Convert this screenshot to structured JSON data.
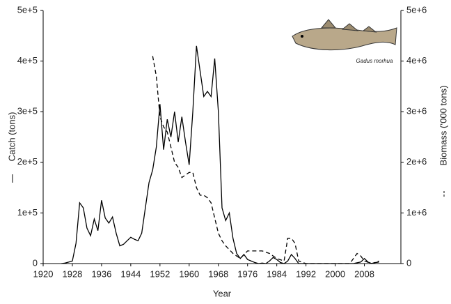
{
  "chart_data": {
    "type": "line",
    "x_label": "Year",
    "y_label": "Catch (tons)",
    "y2_label": "Biomass (‘000 tons)",
    "image_caption": "Gadus morhua",
    "xlim": [
      1920,
      2018
    ],
    "xticks": [
      1920,
      1928,
      1936,
      1944,
      1952,
      1960,
      1968,
      1976,
      1984,
      1992,
      2000,
      2008
    ],
    "ylim": [
      0,
      500000
    ],
    "yticks": [
      0,
      {
        "value": 100000,
        "label": "1e+5"
      },
      {
        "value": 200000,
        "label": "2e+5"
      },
      {
        "value": 300000,
        "label": "3e+5"
      },
      {
        "value": 400000,
        "label": "4e+5"
      },
      {
        "value": 500000,
        "label": "5e+5"
      }
    ],
    "y2lim": [
      0,
      5000000
    ],
    "y2ticks": [
      0,
      {
        "value": 1000000,
        "label": "1e+6"
      },
      {
        "value": 2000000,
        "label": "2e+6"
      },
      {
        "value": 3000000,
        "label": "3e+6"
      },
      {
        "value": 4000000,
        "label": "4e+6"
      },
      {
        "value": 5000000,
        "label": "5e+6"
      }
    ],
    "series": [
      {
        "name": "Catch (tons)",
        "color": "#000000",
        "dash": "solid",
        "x": [
          1925,
          1926,
          1927,
          1928,
          1929,
          1930,
          1931,
          1932,
          1933,
          1934,
          1935,
          1936,
          1937,
          1938,
          1939,
          1940,
          1941,
          1942,
          1943,
          1944,
          1945,
          1946,
          1947,
          1948,
          1949,
          1950,
          1951,
          1952,
          1953,
          1954,
          1955,
          1956,
          1957,
          1958,
          1959,
          1960,
          1961,
          1962,
          1963,
          1964,
          1965,
          1966,
          1967,
          1968,
          1969,
          1970,
          1971,
          1972,
          1973,
          1974,
          1975,
          1976,
          1977,
          1978,
          1979,
          1980,
          1981,
          1982,
          1983,
          1984,
          1985,
          1986,
          1987,
          1988,
          1989,
          1990,
          2005,
          2007,
          2008,
          2009,
          2010,
          2011,
          2012
        ],
        "values": [
          0,
          1000,
          3000,
          5000,
          40000,
          120000,
          110000,
          70000,
          55000,
          88000,
          65000,
          125000,
          90000,
          80000,
          92000,
          60000,
          35000,
          38000,
          45000,
          52000,
          48000,
          45000,
          60000,
          110000,
          160000,
          185000,
          230000,
          315000,
          225000,
          285000,
          250000,
          300000,
          240000,
          290000,
          240000,
          195000,
          300000,
          430000,
          380000,
          330000,
          340000,
          330000,
          405000,
          300000,
          110000,
          85000,
          100000,
          50000,
          20000,
          10000,
          18000,
          8000,
          5000,
          2000,
          0,
          1000,
          0,
          5000,
          12000,
          8000,
          2000,
          0,
          5000,
          18000,
          10000,
          0,
          0,
          3000,
          10000,
          3000,
          0,
          2000,
          3000
        ]
      },
      {
        "name": "Biomass (‘000 tons)",
        "color": "#000000",
        "dash": "dashed",
        "axis": "y2",
        "x": [
          1950,
          1951,
          1952,
          1953,
          1954,
          1955,
          1956,
          1957,
          1958,
          1959,
          1960,
          1961,
          1962,
          1963,
          1964,
          1965,
          1966,
          1967,
          1968,
          1969,
          1970,
          1972,
          1974,
          1976,
          1980,
          1982,
          1984,
          1986,
          1987,
          1988,
          1989,
          1990,
          1992,
          2004,
          2006,
          2007,
          2008,
          2010,
          2012
        ],
        "values": [
          4100000,
          3700000,
          2900000,
          2700000,
          2600000,
          2300000,
          2000000,
          1900000,
          1700000,
          1750000,
          1800000,
          1800000,
          1500000,
          1350000,
          1350000,
          1300000,
          1200000,
          900000,
          600000,
          450000,
          350000,
          200000,
          100000,
          250000,
          250000,
          200000,
          100000,
          50000,
          500000,
          500000,
          400000,
          50000,
          0,
          0,
          200000,
          150000,
          50000,
          0,
          50000
        ]
      }
    ]
  }
}
